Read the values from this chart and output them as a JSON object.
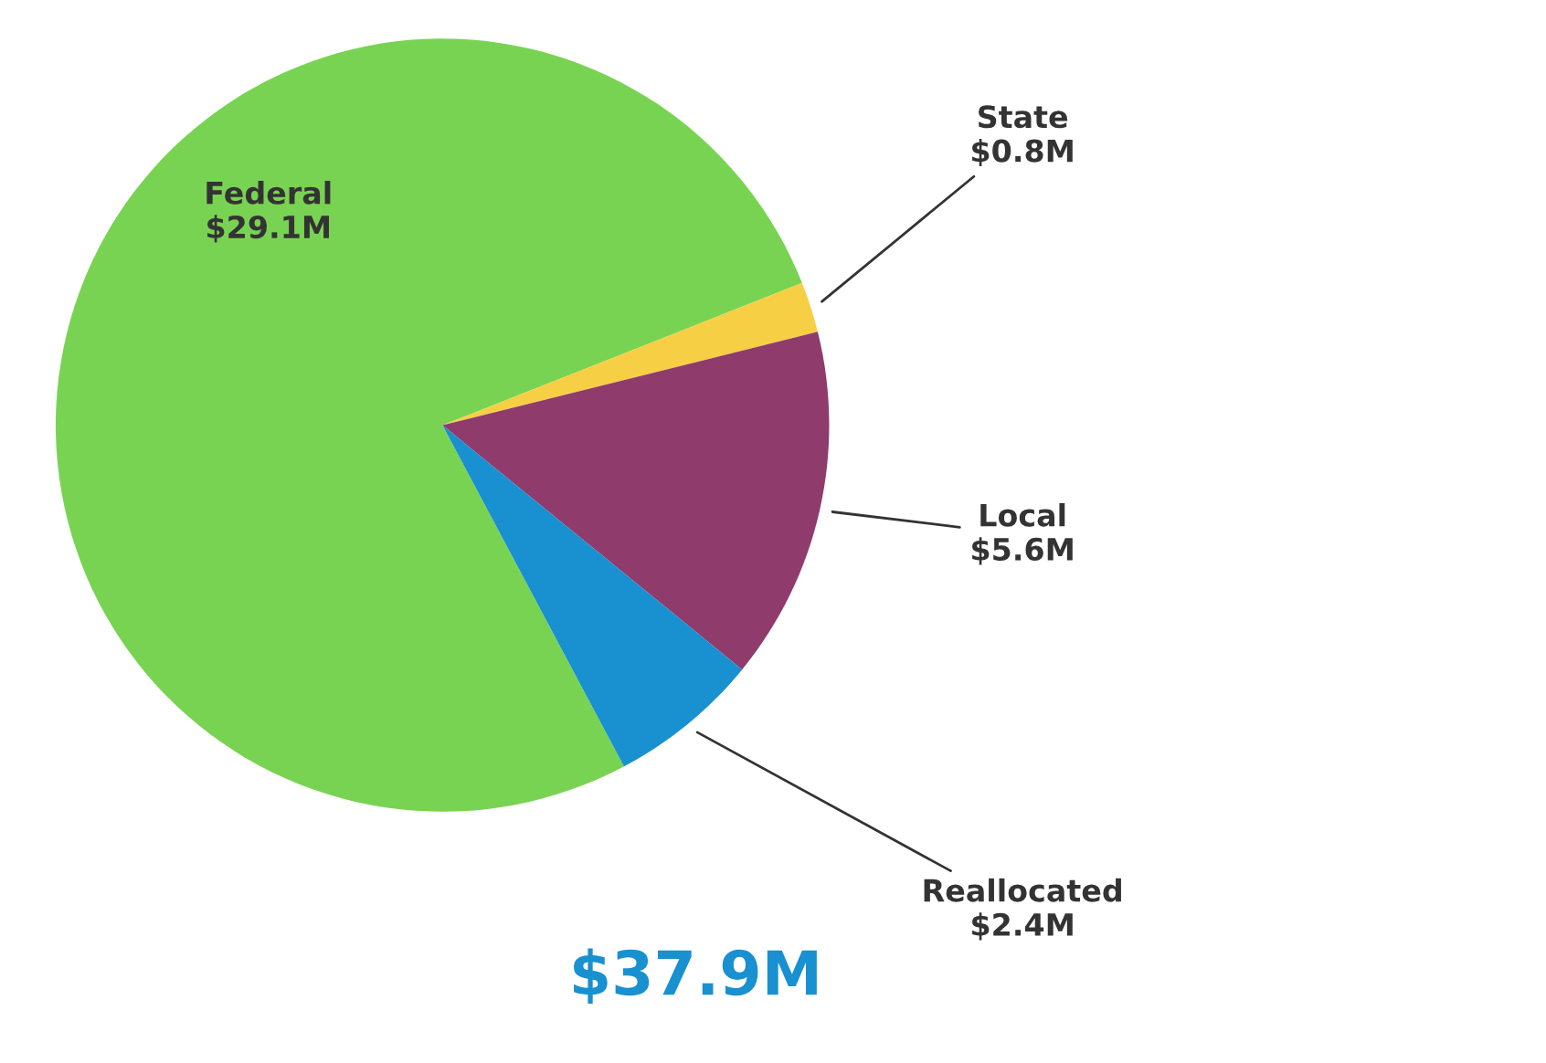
{
  "chart_data": {
    "type": "pie",
    "categories": [
      "Federal",
      "State",
      "Local",
      "Reallocated"
    ],
    "values": [
      29.1,
      0.8,
      5.6,
      2.4
    ],
    "value_labels": [
      "$29.1M",
      "$0.8M",
      "$5.6M",
      "$2.4M"
    ],
    "colors": [
      "#79d352",
      "#f7cf45",
      "#8f3b6c",
      "#1990cf"
    ],
    "annotations": [
      "$37.9M"
    ]
  }
}
